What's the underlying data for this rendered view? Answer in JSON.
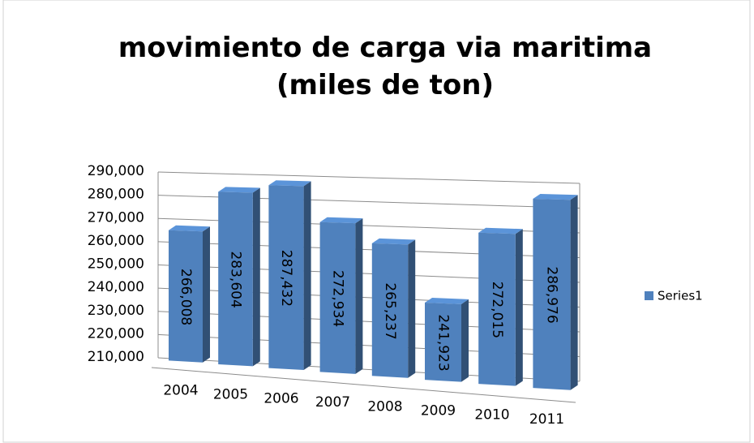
{
  "chart_data": {
    "type": "bar3d",
    "title": "movimiento de carga via maritima (miles de ton)",
    "categories": [
      "2004",
      "2005",
      "2006",
      "2007",
      "2008",
      "2009",
      "2010",
      "2011"
    ],
    "series": [
      {
        "name": "Series1",
        "color": "#4f81bd",
        "values": [
          266008,
          283604,
          287432,
          272934,
          265237,
          241923,
          272015,
          286976
        ],
        "value_labels": [
          "266,008",
          "283,604",
          "287,432",
          "272,934",
          "265,237",
          "241,923",
          "272,015",
          "286,976"
        ]
      }
    ],
    "ylim": [
      210000,
      290000
    ],
    "yticks": [
      {
        "value": 210000,
        "label": "210,000"
      },
      {
        "value": 220000,
        "label": "220,000"
      },
      {
        "value": 230000,
        "label": "230,000"
      },
      {
        "value": 240000,
        "label": "240,000"
      },
      {
        "value": 250000,
        "label": "250,000"
      },
      {
        "value": 260000,
        "label": "260,000"
      },
      {
        "value": 270000,
        "label": "270,000"
      },
      {
        "value": 280000,
        "label": "280,000"
      },
      {
        "value": 290000,
        "label": "290,000"
      }
    ],
    "grid": true,
    "legend": "right"
  }
}
